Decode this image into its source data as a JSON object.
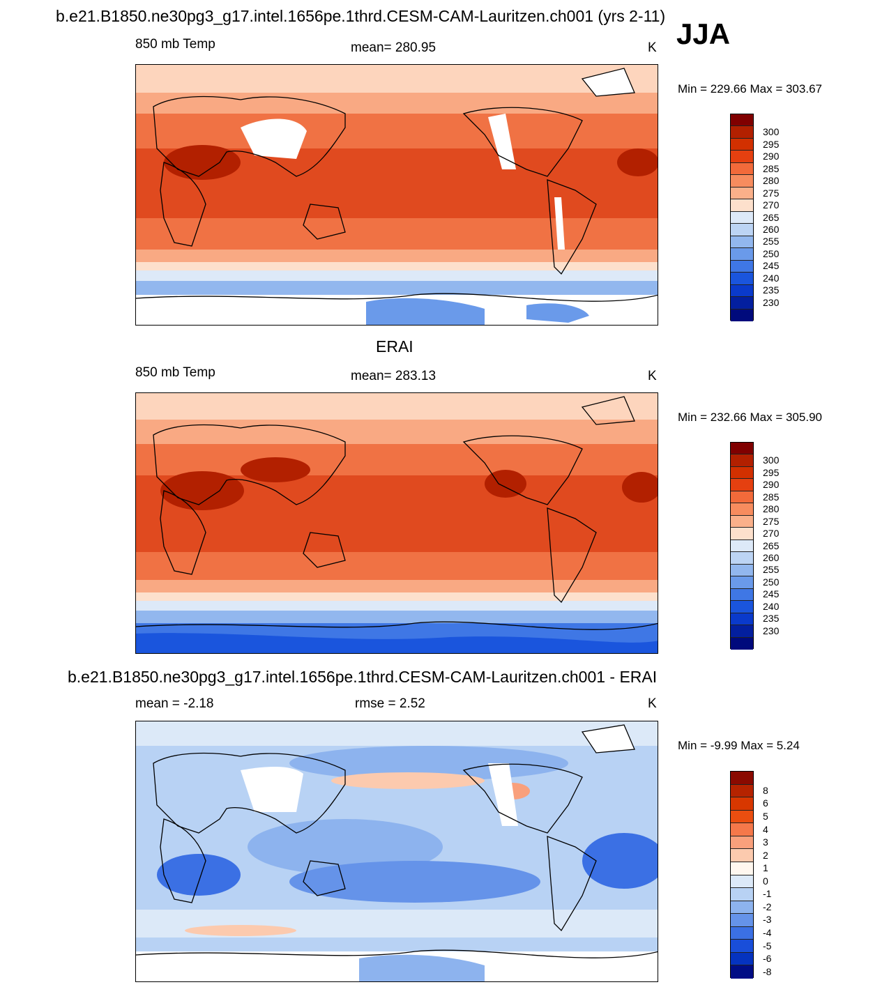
{
  "header": {
    "title": "b.e21.B1850.ne30pg3_g17.intel.1656pe.1thrd.CESM-CAM-Lauritzen.ch001 (yrs 2-11)",
    "season": "JJA"
  },
  "panels": [
    {
      "id": "model",
      "subtitle": "",
      "left_label": "850 mb Temp",
      "center_label": "mean= 280.95",
      "units": "K",
      "minmax": "Min = 229.66 Max = 303.67",
      "colorbar": {
        "colors": [
          "#800000",
          "#b22000",
          "#d23000",
          "#e54010",
          "#f26a3a",
          "#f78c5e",
          "#fab08a",
          "#fde0cc",
          "#dde9f8",
          "#bcd4f4",
          "#92b7ee",
          "#6a9aea",
          "#3f77e5",
          "#1a55dd",
          "#0a3acb",
          "#031f9f",
          "#000a7c"
        ],
        "labels": [
          "300",
          "295",
          "290",
          "285",
          "280",
          "275",
          "270",
          "265",
          "260",
          "255",
          "250",
          "245",
          "240",
          "235",
          "230"
        ]
      }
    },
    {
      "id": "obs",
      "subtitle": "ERAI",
      "left_label": "850 mb Temp",
      "center_label": "mean= 283.13",
      "units": "K",
      "minmax": "Min = 232.66 Max = 305.90",
      "colorbar": {
        "colors": [
          "#800000",
          "#b22000",
          "#d23000",
          "#e54010",
          "#f26a3a",
          "#f78c5e",
          "#fab08a",
          "#fde0cc",
          "#dde9f8",
          "#bcd4f4",
          "#92b7ee",
          "#6a9aea",
          "#3f77e5",
          "#1a55dd",
          "#0a3acb",
          "#031f9f",
          "#000a7c"
        ],
        "labels": [
          "300",
          "295",
          "290",
          "285",
          "280",
          "275",
          "270",
          "265",
          "260",
          "255",
          "250",
          "245",
          "240",
          "235",
          "230"
        ]
      }
    },
    {
      "id": "diff",
      "subtitle": "b.e21.B1850.ne30pg3_g17.intel.1656pe.1thrd.CESM-CAM-Lauritzen.ch001 - ERAI",
      "left_label": "mean =  -2.18",
      "center_label": "rmse =   2.52",
      "units": "K",
      "minmax": "Min =  -9.99 Max =   5.24",
      "colorbar": {
        "colors": [
          "#8a0a00",
          "#b52300",
          "#d83700",
          "#ea4e10",
          "#f5784a",
          "#f9a07c",
          "#fccaae",
          "#fff7ef",
          "#dce9f8",
          "#b8d2f4",
          "#8db3ee",
          "#6593e9",
          "#3b70e4",
          "#194ed9",
          "#0533bf",
          "#000d85"
        ],
        "labels": [
          "8",
          "6",
          "5",
          "4",
          "3",
          "2",
          "1",
          "0",
          "-1",
          "-2",
          "-3",
          "-4",
          "-5",
          "-6",
          "-8"
        ]
      }
    }
  ]
}
